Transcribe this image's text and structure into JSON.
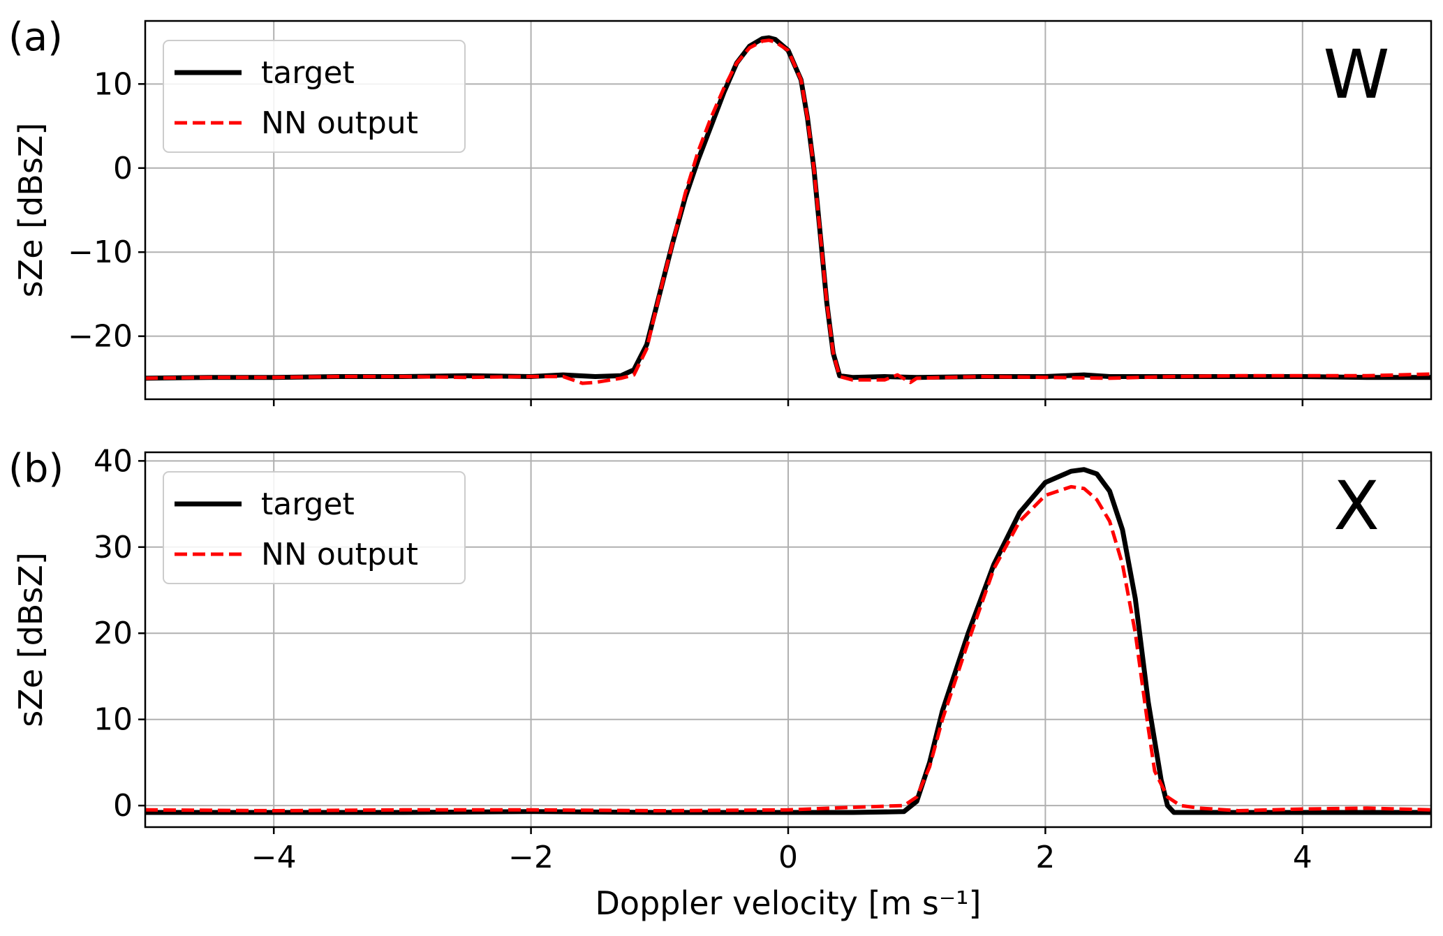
{
  "chart_data": [
    {
      "type": "line",
      "panel_label": "(a)",
      "band_label": "W",
      "xlabel": "",
      "ylabel": "sZe [dBsZ]",
      "xlim": [
        -5,
        5
      ],
      "ylim": [
        -27.5,
        17.5
      ],
      "xticks": [
        -4,
        -2,
        0,
        2,
        4
      ],
      "yticks": [
        -20,
        -10,
        0,
        10
      ],
      "ytick_labels": [
        "−20",
        "−10",
        "0",
        "10"
      ],
      "grid": true,
      "legend": {
        "placement": "upper-left",
        "entries": [
          "target",
          "NN output"
        ]
      },
      "series": [
        {
          "name": "target",
          "color": "#000000",
          "style": "solid",
          "x": [
            -5,
            -4.5,
            -4,
            -3.5,
            -3,
            -2.5,
            -2,
            -1.75,
            -1.5,
            -1.3,
            -1.2,
            -1.1,
            -1.0,
            -0.9,
            -0.8,
            -0.7,
            -0.6,
            -0.5,
            -0.4,
            -0.3,
            -0.2,
            -0.15,
            -0.1,
            0.0,
            0.1,
            0.15,
            0.2,
            0.25,
            0.3,
            0.35,
            0.4,
            0.5,
            0.75,
            1.0,
            1.5,
            2.0,
            2.3,
            2.5,
            3.0,
            3.5,
            4.0,
            4.5,
            5.0
          ],
          "y": [
            -25,
            -24.9,
            -24.9,
            -24.8,
            -24.8,
            -24.7,
            -24.8,
            -24.6,
            -24.8,
            -24.7,
            -24,
            -21,
            -15,
            -9,
            -3.5,
            1,
            5,
            9,
            12.5,
            14.5,
            15.4,
            15.5,
            15.3,
            14,
            10.5,
            6,
            0,
            -8,
            -16,
            -22,
            -24.7,
            -24.9,
            -24.8,
            -24.9,
            -24.8,
            -24.8,
            -24.6,
            -24.8,
            -24.8,
            -24.8,
            -24.8,
            -24.9,
            -24.9
          ]
        },
        {
          "name": "NN output",
          "color": "#ff0000",
          "style": "dashed",
          "x": [
            -5,
            -4.5,
            -4,
            -3.5,
            -3,
            -2.5,
            -2,
            -1.75,
            -1.6,
            -1.5,
            -1.3,
            -1.2,
            -1.1,
            -1.0,
            -0.9,
            -0.8,
            -0.7,
            -0.6,
            -0.5,
            -0.4,
            -0.3,
            -0.2,
            -0.15,
            -0.1,
            0.0,
            0.1,
            0.15,
            0.2,
            0.25,
            0.3,
            0.35,
            0.4,
            0.5,
            0.75,
            0.85,
            0.95,
            1.0,
            1.5,
            2.0,
            2.5,
            3.0,
            3.5,
            4.0,
            4.5,
            5.0
          ],
          "y": [
            -25,
            -24.9,
            -24.9,
            -24.8,
            -24.8,
            -24.9,
            -24.8,
            -24.8,
            -25.6,
            -25.5,
            -25,
            -24.6,
            -21.5,
            -15,
            -9,
            -3,
            2,
            6,
            9.5,
            12.5,
            14.3,
            15.1,
            15.2,
            15,
            14,
            10.5,
            6,
            0,
            -8,
            -16,
            -22,
            -24.8,
            -25.2,
            -25.2,
            -24.6,
            -25.5,
            -25,
            -24.8,
            -24.9,
            -25,
            -24.8,
            -24.7,
            -24.7,
            -24.7,
            -24.5
          ]
        }
      ]
    },
    {
      "type": "line",
      "panel_label": "(b)",
      "band_label": "X",
      "xlabel": "Doppler velocity [m s⁻¹]",
      "ylabel": "sZe [dBsZ]",
      "xlim": [
        -5,
        5
      ],
      "ylim": [
        -2.5,
        41
      ],
      "xticks": [
        -4,
        -2,
        0,
        2,
        4
      ],
      "xtick_labels": [
        "−4",
        "−2",
        "0",
        "2",
        "4"
      ],
      "yticks": [
        0,
        10,
        20,
        30,
        40
      ],
      "ytick_labels": [
        "0",
        "10",
        "20",
        "30",
        "40"
      ],
      "grid": true,
      "legend": {
        "placement": "upper-left",
        "entries": [
          "target",
          "NN output"
        ]
      },
      "series": [
        {
          "name": "target",
          "color": "#000000",
          "style": "solid",
          "x": [
            -5,
            -4,
            -3,
            -2,
            -1,
            0,
            0.5,
            0.9,
            1.0,
            1.1,
            1.2,
            1.4,
            1.6,
            1.8,
            2.0,
            2.2,
            2.3,
            2.4,
            2.5,
            2.6,
            2.7,
            2.8,
            2.9,
            2.95,
            3.0,
            3.1,
            3.5,
            4.0,
            4.5,
            5.0
          ],
          "y": [
            -0.8,
            -0.8,
            -0.8,
            -0.7,
            -0.8,
            -0.8,
            -0.8,
            -0.7,
            0.5,
            5,
            11,
            20,
            28,
            34,
            37.5,
            38.8,
            39,
            38.5,
            36.5,
            32,
            24,
            12,
            3,
            0,
            -0.8,
            -0.8,
            -0.8,
            -0.8,
            -0.8,
            -0.8
          ]
        },
        {
          "name": "NN output",
          "color": "#ff0000",
          "style": "dashed",
          "x": [
            -5,
            -4,
            -3,
            -2,
            -1,
            0,
            0.5,
            0.9,
            1.0,
            1.1,
            1.2,
            1.4,
            1.6,
            1.8,
            2.0,
            2.2,
            2.3,
            2.4,
            2.5,
            2.6,
            2.7,
            2.8,
            2.85,
            2.95,
            3.05,
            3.2,
            3.5,
            4.0,
            4.5,
            5.0
          ],
          "y": [
            -0.5,
            -0.6,
            -0.5,
            -0.5,
            -0.6,
            -0.5,
            -0.2,
            0,
            1,
            4.5,
            10,
            19,
            27.5,
            33,
            36,
            37,
            36.8,
            35.5,
            33,
            28,
            20,
            9,
            4,
            1,
            0,
            -0.3,
            -0.6,
            -0.4,
            -0.3,
            -0.5
          ]
        }
      ]
    }
  ]
}
